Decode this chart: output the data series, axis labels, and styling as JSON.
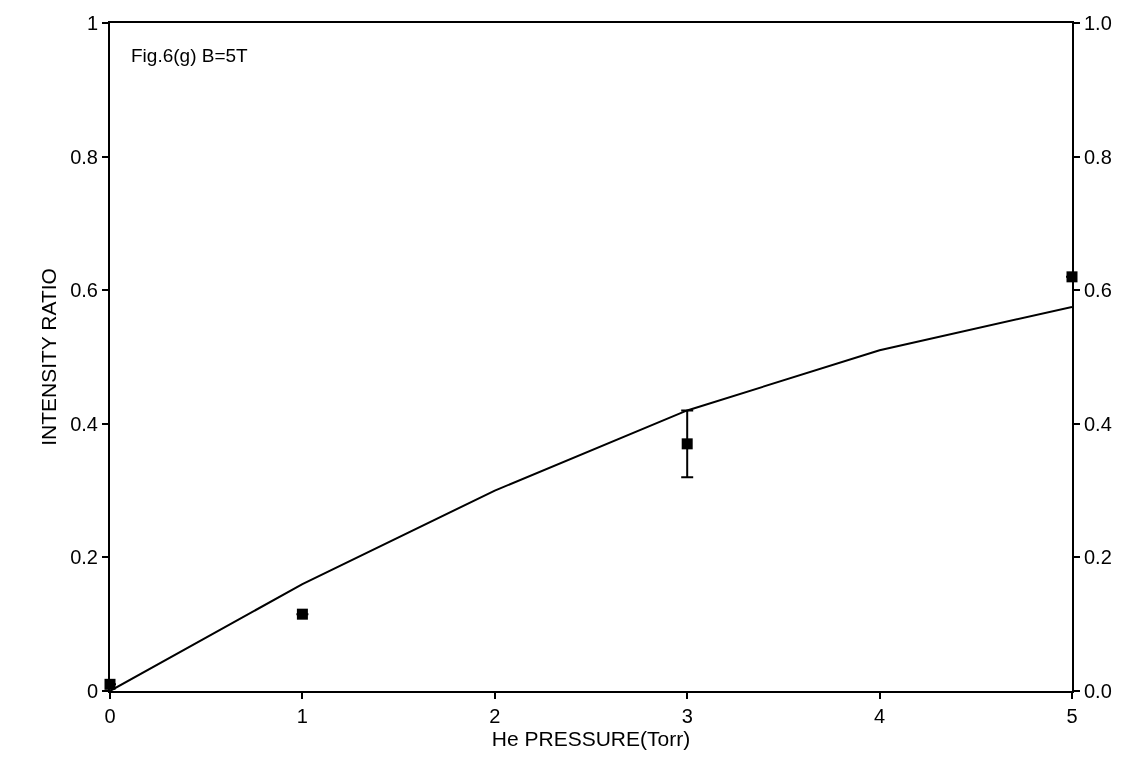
{
  "chart_data": {
    "type": "scatter",
    "xlabel": "He PRESSURE(Torr)",
    "ylabel": "INTENSITY RATIO",
    "annotations": [
      "Fig.6(g) B=5T"
    ],
    "xlim": [
      0,
      5
    ],
    "xticks": [
      0,
      1,
      2,
      3,
      4,
      5
    ],
    "ylim": [
      0,
      1
    ],
    "yticks": [
      0,
      0.2,
      0.4,
      0.6,
      0.8,
      1
    ],
    "y2lim": [
      0,
      1
    ],
    "y2ticks": [
      {
        "value": 0,
        "label": "0.0"
      },
      0.2,
      0.4,
      0.6,
      0.8,
      {
        "value": 1,
        "label": "1.0"
      }
    ],
    "series": [
      {
        "color": "#000000",
        "marker": "square",
        "x": [
          0,
          1,
          3,
          5
        ],
        "values": [
          0.01,
          0.115,
          0.37,
          0.62
        ],
        "errors": [
          null,
          null,
          [
            0.32,
            0.42
          ],
          null
        ]
      },
      {
        "type": "line",
        "color": "#000000",
        "marker": "none",
        "line_style": "solid",
        "x": [
          0,
          1,
          2,
          3,
          4,
          5
        ],
        "values": [
          0.0,
          0.16,
          0.3,
          0.42,
          0.51,
          0.575
        ]
      }
    ]
  }
}
